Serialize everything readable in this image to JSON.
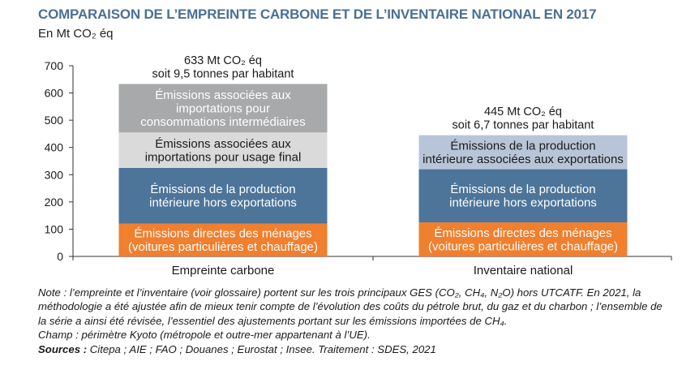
{
  "title": "COMPARAISON DE L’EMPREINTE CARBONE ET DE L’INVENTAIRE NATIONAL EN 2017",
  "unit": "En Mt CO₂ éq",
  "chart_data": {
    "type": "bar",
    "stacked": true,
    "ylim": [
      0,
      700
    ],
    "yticks": [
      0,
      100,
      200,
      300,
      400,
      500,
      600,
      700
    ],
    "grid": false,
    "categories": [
      "Empreinte carbone",
      "Inventaire national"
    ],
    "bars": [
      {
        "category": "Empreinte carbone",
        "total_label": [
          "633 Mt CO₂ éq",
          "soit 9,5 tonnes par habitant"
        ],
        "segments": [
          {
            "label": [
              "Émissions directes des ménages",
              "(voitures particulières et chauffage)"
            ],
            "value": 120,
            "color": "#f07f2e",
            "text_color": "#ffffff"
          },
          {
            "label": [
              "Émissions de la production",
              "intérieure hors exportations"
            ],
            "value": 205,
            "color": "#4d7499",
            "text_color": "#ffffff"
          },
          {
            "label": [
              "Émissions associées aux",
              "importations pour usage final"
            ],
            "value": 130,
            "color": "#dadada",
            "text_color": "#1a1a1a"
          },
          {
            "label": [
              "Émissions associées aux",
              "importations pour",
              "consommations intermédiaires"
            ],
            "value": 178,
            "color": "#a7a9ab",
            "text_color": "#ffffff"
          }
        ]
      },
      {
        "category": "Inventaire national",
        "total_label": [
          "445 Mt CO₂ éq",
          "soit 6,7 tonnes par habitant"
        ],
        "segments": [
          {
            "label": [
              "Émissions directes des ménages",
              "(voitures particulières et chauffage)"
            ],
            "value": 125,
            "color": "#f07f2e",
            "text_color": "#ffffff"
          },
          {
            "label": [
              "Émissions de la production",
              "intérieure hors exportations"
            ],
            "value": 195,
            "color": "#4d7499",
            "text_color": "#ffffff"
          },
          {
            "label": [
              "Émissions de la production",
              "intérieure associées aux exportations"
            ],
            "value": 125,
            "color": "#b8c5d9",
            "text_color": "#1a1a1a"
          }
        ]
      }
    ]
  },
  "notes": {
    "note": "Note : l’empreinte et l’inventaire (voir glossaire) portent sur les trois principaux GES (CO₂, CH₄, N₂O) hors UTCATF. En 2021, la méthodologie a été ajustée afin de mieux tenir compte de l’évolution des coûts du pétrole brut, du gaz et du charbon ; l’ensemble de la série a ainsi été révisée, l’essentiel des ajustements portant sur les émissions importées de CH₄.",
    "champ": "Champ : périmètre Kyoto (métropole et outre-mer appartenant à l’UE).",
    "sources_label": "Sources :",
    "sources_text": " Citepa ; AIE ; FAO ; Douanes ; Eurostat ; Insee. Traitement : SDES, 2021"
  }
}
